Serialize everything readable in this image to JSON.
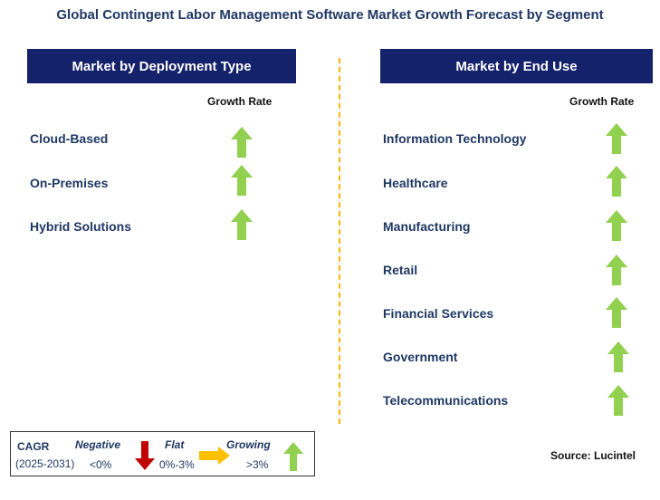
{
  "title": "Global Contingent Labor Management Software Market Growth Forecast by Segment",
  "left_panel": {
    "header": "Market by Deployment Type",
    "growth_label": "Growth Rate",
    "items": [
      {
        "label": "Cloud-Based",
        "trend": "growing"
      },
      {
        "label": "On-Premises",
        "trend": "growing"
      },
      {
        "label": "Hybrid Solutions",
        "trend": "growing"
      }
    ]
  },
  "right_panel": {
    "header": "Market by End Use",
    "growth_label": "Growth Rate",
    "items": [
      {
        "label": "Information Technology",
        "trend": "growing"
      },
      {
        "label": "Healthcare",
        "trend": "growing"
      },
      {
        "label": "Manufacturing",
        "trend": "growing"
      },
      {
        "label": "Retail",
        "trend": "growing"
      },
      {
        "label": "Financial Services",
        "trend": "growing"
      },
      {
        "label": "Government",
        "trend": "growing"
      },
      {
        "label": "Telecommunications",
        "trend": "growing"
      }
    ]
  },
  "legend": {
    "cagr_label": "CAGR",
    "period": "(2025-2031)",
    "negative": {
      "label": "Negative",
      "range": "<0%",
      "icon": "down-arrow-icon",
      "color": "#c00000"
    },
    "flat": {
      "label": "Flat",
      "range": "0%-3%",
      "icon": "right-arrow-icon",
      "color": "#ffc000"
    },
    "growing": {
      "label": "Growing",
      "range": ">3%",
      "icon": "up-arrow-icon",
      "color": "#92d050"
    }
  },
  "source": "Source: Lucintel",
  "colors": {
    "header_bg": "#14216b",
    "title_text": "#1f3864",
    "divider": "#f5b800",
    "up_arrow": "#92d050",
    "legend_italic": "#1f3864"
  }
}
